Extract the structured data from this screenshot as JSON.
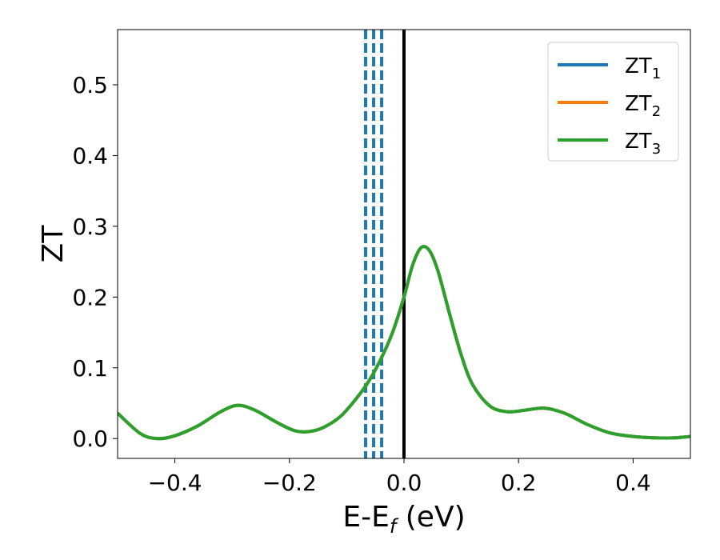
{
  "chart_data": {
    "type": "line",
    "xlabel": {
      "main": "E-E",
      "sub": "f",
      "unit": " (eV)"
    },
    "ylabel": "ZT",
    "xlim": [
      -0.5,
      0.5
    ],
    "ylim": [
      -0.028,
      0.578
    ],
    "xticks": [
      -0.4,
      -0.2,
      0.0,
      0.2,
      0.4
    ],
    "xtick_labels": [
      "−0.4",
      "−0.2",
      "0.0",
      "0.2",
      "0.4"
    ],
    "yticks": [
      0.0,
      0.1,
      0.2,
      0.3,
      0.4,
      0.5
    ],
    "ytick_labels": [
      "0.0",
      "0.1",
      "0.2",
      "0.3",
      "0.4",
      "0.5"
    ],
    "grid": false,
    "legend_position": "top-right",
    "series": [
      {
        "name": "ZT",
        "sub": "1",
        "color": "#1f77b4",
        "x": [
          -0.5,
          -0.46,
          -0.43,
          -0.4,
          -0.36,
          -0.32,
          -0.29,
          -0.26,
          -0.22,
          -0.19,
          -0.165,
          -0.14,
          -0.11,
          -0.08,
          -0.06,
          -0.04,
          -0.02,
          0.0,
          0.015,
          0.03,
          0.045,
          0.06,
          0.08,
          0.1,
          0.12,
          0.15,
          0.18,
          0.21,
          0.245,
          0.28,
          0.32,
          0.36,
          0.4,
          0.44,
          0.47,
          0.5
        ],
        "y": [
          0.036,
          0.007,
          0.0,
          0.004,
          0.018,
          0.038,
          0.047,
          0.04,
          0.022,
          0.011,
          0.01,
          0.016,
          0.032,
          0.06,
          0.083,
          0.113,
          0.15,
          0.2,
          0.245,
          0.27,
          0.265,
          0.235,
          0.175,
          0.118,
          0.076,
          0.046,
          0.038,
          0.04,
          0.043,
          0.036,
          0.02,
          0.008,
          0.003,
          0.001,
          0.001,
          0.003
        ]
      },
      {
        "name": "ZT",
        "sub": "2",
        "color": "#ff7f0e",
        "x": [
          -0.5,
          -0.46,
          -0.43,
          -0.4,
          -0.36,
          -0.32,
          -0.29,
          -0.26,
          -0.22,
          -0.19,
          -0.165,
          -0.14,
          -0.11,
          -0.08,
          -0.06,
          -0.04,
          -0.02,
          0.0,
          0.015,
          0.03,
          0.045,
          0.06,
          0.08,
          0.1,
          0.12,
          0.15,
          0.18,
          0.21,
          0.245,
          0.28,
          0.32,
          0.36,
          0.4,
          0.44,
          0.47,
          0.5
        ],
        "y": [
          0.036,
          0.007,
          0.0,
          0.004,
          0.018,
          0.038,
          0.047,
          0.04,
          0.022,
          0.011,
          0.01,
          0.016,
          0.032,
          0.06,
          0.083,
          0.113,
          0.15,
          0.2,
          0.245,
          0.27,
          0.265,
          0.235,
          0.175,
          0.118,
          0.076,
          0.046,
          0.038,
          0.04,
          0.043,
          0.036,
          0.02,
          0.008,
          0.003,
          0.001,
          0.001,
          0.003
        ]
      },
      {
        "name": "ZT",
        "sub": "3",
        "color": "#2ca02c",
        "x": [
          -0.5,
          -0.46,
          -0.43,
          -0.4,
          -0.36,
          -0.32,
          -0.29,
          -0.26,
          -0.22,
          -0.19,
          -0.165,
          -0.14,
          -0.11,
          -0.08,
          -0.06,
          -0.04,
          -0.02,
          0.0,
          0.015,
          0.03,
          0.045,
          0.06,
          0.08,
          0.1,
          0.12,
          0.15,
          0.18,
          0.21,
          0.245,
          0.28,
          0.32,
          0.36,
          0.4,
          0.44,
          0.47,
          0.5
        ],
        "y": [
          0.036,
          0.007,
          0.0,
          0.004,
          0.018,
          0.038,
          0.047,
          0.04,
          0.022,
          0.011,
          0.01,
          0.016,
          0.032,
          0.06,
          0.083,
          0.113,
          0.15,
          0.2,
          0.245,
          0.27,
          0.265,
          0.235,
          0.175,
          0.118,
          0.076,
          0.046,
          0.038,
          0.04,
          0.043,
          0.036,
          0.02,
          0.008,
          0.003,
          0.001,
          0.001,
          0.003
        ]
      }
    ],
    "vertical_lines": [
      {
        "x": -0.067,
        "style": "dashed",
        "color": "#1f77b4"
      },
      {
        "x": -0.053,
        "style": "dashed",
        "color": "#1f77b4"
      },
      {
        "x": -0.039,
        "style": "dashed",
        "color": "#1f77b4"
      },
      {
        "x": 0.0,
        "style": "solid",
        "color": "#000000"
      }
    ]
  }
}
